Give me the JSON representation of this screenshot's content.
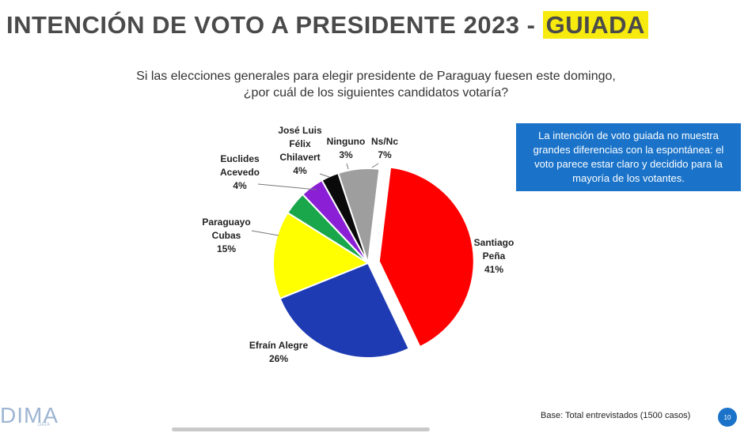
{
  "header": {
    "title_main": "INTENCIÓN DE VOTO A PRESIDENTE 2023 - ",
    "title_highlight": "GUIADA"
  },
  "subtitle": {
    "line1": "Si las elecciones generales para elegir presidente de Paraguay fuesen este domingo,",
    "line2": "¿por cuál de los siguientes candidatos votaría?"
  },
  "callout": {
    "text": "La intención de voto guiada no muestra grandes diferencias con la espontánea: el voto parece estar claro y decidido para la mayoría de los votantes."
  },
  "footer": {
    "logo_text": "DIMA",
    "logo_sub": "DATA",
    "base_text": "Base: Total entrevistados (1500 casos)",
    "page_number": "10"
  },
  "chart_data": {
    "type": "pie",
    "slices": [
      {
        "label_lines": [
          "Santiago",
          "Peña",
          "41%"
        ],
        "name": "Santiago Peña",
        "value": 41,
        "color": "#ff0000",
        "exploded": true
      },
      {
        "label_lines": [
          "Efraín Alegre",
          "26%"
        ],
        "name": "Efraín Alegre",
        "value": 26,
        "color": "#1f3bb3",
        "exploded": false
      },
      {
        "label_lines": [
          "Paraguayo",
          "Cubas",
          "15%"
        ],
        "name": "Paraguayo Cubas",
        "value": 15,
        "color": "#ffff00",
        "exploded": false
      },
      {
        "label_lines": [
          "Euclides",
          "Acevedo",
          "4%"
        ],
        "name": "Euclides Acevedo",
        "value": 4,
        "color": "#1aa64a",
        "exploded": false
      },
      {
        "label_lines": [
          "José Luis",
          "Félix",
          "Chilavert",
          "4%"
        ],
        "name": "José Luis Félix Chilavert",
        "value": 4,
        "color": "#8a1fd6",
        "exploded": false
      },
      {
        "label_lines": [
          "Ninguno",
          "3%"
        ],
        "name": "Ninguno",
        "value": 3,
        "color": "#0a0a0a",
        "exploded": false
      },
      {
        "label_lines": [
          "Ns/Nc",
          "7%"
        ],
        "name": "Ns/Nc",
        "value": 7,
        "color": "#9e9e9e",
        "exploded": false
      }
    ]
  }
}
